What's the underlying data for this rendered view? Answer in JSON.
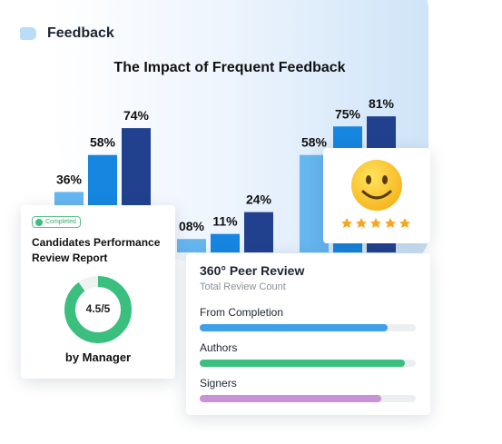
{
  "header": {
    "label": "Feedback"
  },
  "chart_data": {
    "type": "bar",
    "title": "The Impact of Frequent Feedback",
    "categories": [
      null,
      null,
      null
    ],
    "series": [
      {
        "color": "#66b6f0",
        "values": [
          36,
          8,
          58
        ],
        "value_labels": [
          "36%",
          "08%",
          "58%"
        ]
      },
      {
        "color": "#1686e0",
        "values": [
          58,
          11,
          75
        ],
        "value_labels": [
          "58%",
          "11%",
          "75%"
        ]
      },
      {
        "color": "#21418f",
        "values": [
          74,
          24,
          81
        ],
        "value_labels": [
          "74%",
          "24%",
          "81%"
        ]
      }
    ]
  },
  "candidate_card": {
    "status": "Completed",
    "title": "Candidates Performance Review Report",
    "rating": {
      "value": 4.5,
      "max": 5,
      "label": "4.5/5"
    },
    "caption": "by Manager"
  },
  "peer_review": {
    "title": "360° Peer Review",
    "subtitle": "Total Review Count",
    "metrics": [
      {
        "name": "From Completion",
        "value": 87,
        "color": "#3da0e9"
      },
      {
        "name": "Authors",
        "value": 95,
        "color": "#3bbf7f"
      },
      {
        "name": "Signers",
        "value": 84,
        "color": "#c992d8"
      }
    ]
  }
}
